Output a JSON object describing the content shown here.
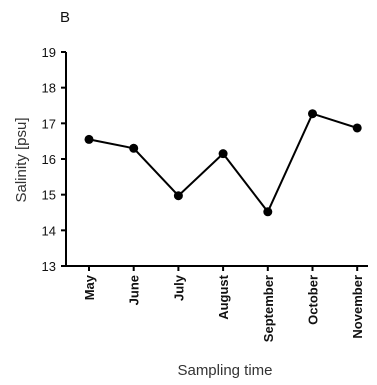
{
  "chart_data": {
    "type": "line",
    "panel_label": "B",
    "xlabel": "Sampling time",
    "ylabel": "Salinity [psu]",
    "ylim": [
      13,
      19
    ],
    "yticks": [
      13,
      14,
      15,
      16,
      17,
      18,
      19
    ],
    "categories": [
      "May",
      "June",
      "July",
      "August",
      "September",
      "October",
      "November"
    ],
    "values": [
      16.55,
      16.3,
      14.97,
      16.15,
      14.52,
      17.27,
      16.87
    ],
    "line_color": "#000000",
    "marker_color": "#000000",
    "grid": false,
    "legend": "none"
  }
}
